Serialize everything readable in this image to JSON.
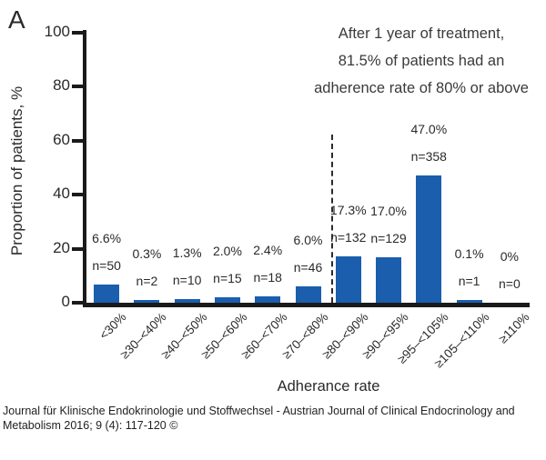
{
  "panel_label": "A",
  "annotation": {
    "line1": "After 1 year of treatment,",
    "line2": "81.5% of patients had an",
    "line3": "adherence rate of 80% or above"
  },
  "chart_data": {
    "type": "bar",
    "categories": [
      "<30%",
      "≥30–<40%",
      "≥40–<50%",
      "≥50–<60%",
      "≥60–<70%",
      "≥70–<80%",
      "≥80–<90%",
      "≥90–<95%",
      "≥95–<105%",
      "≥105–<110%",
      "≥110%"
    ],
    "values": [
      6.6,
      0.3,
      1.3,
      2.0,
      2.4,
      6.0,
      17.3,
      17.0,
      47.0,
      0.1,
      0
    ],
    "counts": [
      50,
      2,
      10,
      15,
      18,
      46,
      132,
      129,
      358,
      1,
      0
    ],
    "bar_labels_pct": [
      "6.6%",
      "0.3%",
      "1.3%",
      "2.0%",
      "2.4%",
      "6.0%",
      "17.3%",
      "17.0%",
      "47.0%",
      "0.1%",
      "0%"
    ],
    "bar_labels_n": [
      "n=50",
      "n=2",
      "n=10",
      "n=15",
      "n=18",
      "n=46",
      "n=132",
      "n=129",
      "n=358",
      "n=1",
      "n=0"
    ],
    "xlabel": "Adherance rate",
    "ylabel": "Proportion of patients, %",
    "ylim": [
      0,
      100
    ],
    "yticks": [
      0,
      20,
      40,
      60,
      80,
      100
    ],
    "grid": false,
    "legend": false,
    "bar_color": "#1b5ead",
    "axis_color": "#1a1a1a",
    "dashed_separator": {
      "after_category_index": 5
    }
  },
  "footer": "Journal für Klinische Endokrinologie und Stoffwechsel - Austrian Journal of Clinical Endocrinology and Metabolism 2016; 9 (4): 117-120 ©"
}
